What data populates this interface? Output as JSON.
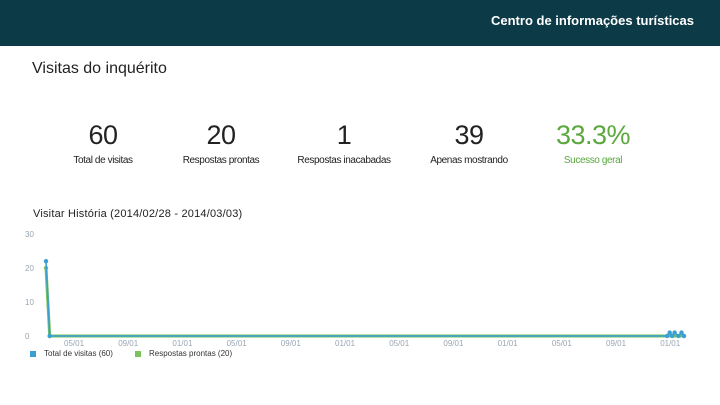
{
  "header": {
    "title": "Centro de informações turísticas"
  },
  "page_title": "Visitas do inquérito",
  "stats": [
    {
      "value": "60",
      "label": "Total de visitas"
    },
    {
      "value": "20",
      "label": "Respostas prontas"
    },
    {
      "value": "1",
      "label": "Respostas inacabadas"
    },
    {
      "value": "39",
      "label": "Apenas mostrando"
    },
    {
      "value": "33.3%",
      "label": "Sucesso geral"
    }
  ],
  "colors": {
    "header_bg": "#0d3a47",
    "series_visits": "#3b9fd1",
    "series_responses": "#7ac35a",
    "success": "#5aa83e"
  },
  "chart_data": {
    "type": "line",
    "title": "Visitar História (2014/02/28 - 2014/03/03)",
    "y_ticks": [
      "30",
      "20",
      "10",
      "0"
    ],
    "ylim": [
      0,
      30
    ],
    "x_ticks": [
      "05/01",
      "09/01",
      "01/01",
      "05/01",
      "09/01",
      "01/01",
      "05/01",
      "09/01",
      "01/01",
      "05/01",
      "09/01",
      "01/01"
    ],
    "series": [
      {
        "name": "Total de visitas (60)",
        "color": "#3b9fd1",
        "points": [
          [
            0,
            22
          ],
          [
            0.6,
            0
          ],
          [
            99.6,
            0
          ],
          [
            100,
            1
          ],
          [
            100.4,
            0
          ],
          [
            100.8,
            1
          ],
          [
            101.4,
            0
          ],
          [
            101.9,
            1
          ],
          [
            102.3,
            0
          ]
        ]
      },
      {
        "name": "Respostas prontas (20)",
        "color": "#7ac35a",
        "points": [
          [
            0,
            20
          ],
          [
            0.6,
            0
          ],
          [
            102.3,
            0
          ]
        ]
      }
    ],
    "legend": [
      {
        "label": "Total de visitas (60)",
        "color": "#3b9fd1"
      },
      {
        "label": "Respostas prontas (20)",
        "color": "#7ac35a"
      }
    ],
    "grid": false,
    "legend_position": "bottom-left"
  }
}
